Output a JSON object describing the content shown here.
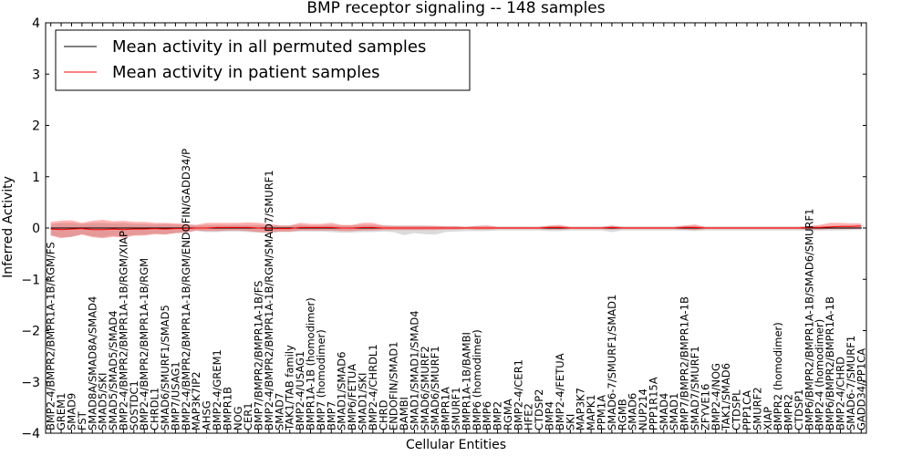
{
  "chart_data": {
    "type": "line",
    "title": "BMP receptor signaling -- 148 samples",
    "xlabel": "Cellular Entities",
    "ylabel": "Inferred Activity",
    "ylim": [
      -4,
      4
    ],
    "yticks": [
      4,
      3,
      2,
      1,
      0,
      -1,
      -2,
      -3,
      -4
    ],
    "ytick_labels": [
      "4",
      "3",
      "2",
      "1",
      "0",
      "−1",
      "−2",
      "−3",
      "−4"
    ],
    "legend_position": "top-left",
    "legend": [
      {
        "label": "Mean activity in all permuted samples",
        "color": "#000000"
      },
      {
        "label": "Mean activity in patient samples",
        "color": "#ff0000"
      }
    ],
    "categories": [
      "BMP2-4/BMPR2/BMPR1A-1B/RGM/FS",
      "GREM1",
      "SMAD9",
      "FST",
      "SMAD8A/SMAD8A/SMAD4",
      "SMAD5/SKI",
      "SMAD5/SMAD5/SMAD4",
      "BMP2-4/BMPR2/BMPR1A-1B/RGM/XIAP",
      "SOSTDC1",
      "BMP2-4/BMPR2/BMPR1A-1B/RGM",
      "CHRDL1",
      "SMAD6/SMURF1/SMAD5",
      "BMP7/USAG1",
      "BMP2-4/BMPR2/BMPR1A-1B/RGM/ENDOFIN/GADD34/P",
      "MAP3K7IP2",
      "AHSG",
      "BMP2-4/GREM1",
      "BMPR1B",
      "NOG",
      "CER1",
      "BMP7/BMPR2/BMPR1A-1B/FS",
      "BMP2-4/BMPR2/BMPR1A-1B/RGM/SMAD7/SMURF1",
      "SMAD7",
      "TAK1/TAB family",
      "BMP2-4/USAG1",
      "BMPR1A-1B (homodimer)",
      "BMP7 (homodimer)",
      "BMP7",
      "SMAD1/SMAD6",
      "BMP6/FETUA",
      "SMAD1/SKI",
      "BMP2-4/CHRDL1",
      "CHRD",
      "ENDOFIN/SMAD1",
      "BAMBI",
      "SMAD1/SMAD1/SMAD4",
      "SMAD6/SMURF2",
      "SMAD6/SMURF1",
      "BMPR1A",
      "SMURF1",
      "BMPR1A-1B/BAMBI",
      "BMP6 (homodimer)",
      "BMP6",
      "BMP2",
      "RGMA",
      "BMP2-4/CER1",
      "HFE2",
      "CTDSP2",
      "BMP4",
      "BMP2-4/FETUA",
      "SKI",
      "MAP3K7",
      "MAPK1",
      "PPM1A",
      "SMAD6-7/SMURF1/SMAD1",
      "RGMB",
      "SMAD6",
      "NUP214",
      "PPP1R15A",
      "SMAD4",
      "SMAD1",
      "BMP7/BMPR2/BMPR1A-1B",
      "SMAD7/SMURF1",
      "ZFYVE16",
      "BMP2-4/NOG",
      "TAK1/SMAD6",
      "CTDSPL",
      "PPP1CA",
      "SMURF2",
      "XIAP",
      "BMPR2 (homodimer)",
      "BMPR2",
      "CTDSP1",
      "BMP6/BMPR2/BMPR1A-1B/SMAD6/SMURF1",
      "BMP2-4 (homodimer)",
      "BMP6/BMPR2/BMPR1A-1B",
      "BMP2-4/CHRD",
      "SMAD6-7/SMURF1",
      "GADD34/PP1CA"
    ],
    "series": [
      {
        "name": "Mean activity in all permuted samples",
        "values": [
          0,
          0,
          0,
          0,
          0,
          0,
          0,
          0,
          0,
          0,
          0,
          0,
          0,
          0,
          0,
          0,
          0,
          0,
          0,
          0,
          0,
          0,
          0,
          0,
          0,
          0,
          0,
          0,
          0,
          0,
          0,
          0,
          0,
          0,
          0,
          0,
          0,
          0,
          0,
          0,
          0,
          0,
          0,
          0,
          0,
          0,
          0,
          0,
          0,
          0,
          0,
          0,
          0,
          0,
          0,
          0,
          0,
          0,
          0,
          0,
          0,
          0,
          0,
          0,
          0,
          0,
          0,
          0,
          0,
          0,
          0,
          0,
          0,
          0,
          0,
          0,
          0,
          0,
          0
        ]
      },
      {
        "name": "Mean activity in patient samples",
        "values": [
          -0.02,
          -0.03,
          -0.02,
          -0.01,
          -0.03,
          -0.03,
          -0.02,
          -0.03,
          -0.02,
          -0.02,
          -0.01,
          -0.02,
          -0.01,
          -0.01,
          0,
          0,
          0.01,
          0.01,
          0.01,
          0.01,
          0,
          -0.01,
          -0.01,
          -0.01,
          0.01,
          0.01,
          0.01,
          0.01,
          0,
          0,
          0.01,
          0.01,
          0,
          0,
          0,
          0,
          0,
          0,
          0,
          0,
          0,
          0,
          0,
          0,
          0,
          0,
          0,
          0,
          0.01,
          0.01,
          0,
          0,
          0,
          0,
          0.01,
          0,
          0,
          0,
          0,
          0,
          0,
          0.01,
          0.01,
          0,
          0,
          0,
          0,
          0,
          0,
          0,
          0,
          0,
          0,
          0.01,
          0.01,
          0.02,
          0.03,
          0.03,
          0.04
        ]
      },
      {
        "name": "Patient activity spread (upper)",
        "values": [
          0.12,
          0.14,
          0.15,
          0.1,
          0.14,
          0.16,
          0.13,
          0.14,
          0.12,
          0.12,
          0.1,
          0.1,
          0.09,
          0.08,
          0.06,
          0.1,
          0.1,
          0.1,
          0.1,
          0.11,
          0.1,
          0.08,
          0.05,
          0.05,
          0.1,
          0.08,
          0.08,
          0.1,
          0.06,
          0.06,
          0.1,
          0.1,
          0.05,
          0.04,
          0.04,
          0.04,
          0.04,
          0.04,
          0.03,
          0.03,
          0.02,
          0.04,
          0.05,
          0.02,
          0.02,
          0.02,
          0.02,
          0.02,
          0.05,
          0.06,
          0.02,
          0.02,
          0.02,
          0.02,
          0.05,
          0.02,
          0.02,
          0.02,
          0.02,
          0.02,
          0.02,
          0.05,
          0.07,
          0.02,
          0.02,
          0.02,
          0.02,
          0.02,
          0.02,
          0.02,
          0.02,
          0.02,
          0.02,
          0.04,
          0.06,
          0.1,
          0.1,
          0.09,
          0.09
        ]
      },
      {
        "name": "Patient activity spread (lower)",
        "values": [
          -0.15,
          -0.2,
          -0.17,
          -0.13,
          -0.18,
          -0.2,
          -0.17,
          -0.19,
          -0.15,
          -0.15,
          -0.12,
          -0.13,
          -0.1,
          -0.09,
          -0.05,
          -0.06,
          -0.06,
          -0.05,
          -0.05,
          -0.06,
          -0.08,
          -0.09,
          -0.07,
          -0.07,
          -0.05,
          -0.05,
          -0.05,
          -0.05,
          -0.06,
          -0.06,
          -0.05,
          -0.05,
          -0.04,
          -0.04,
          -0.04,
          -0.04,
          -0.04,
          -0.04,
          -0.03,
          -0.03,
          -0.02,
          -0.03,
          -0.03,
          -0.02,
          -0.02,
          -0.02,
          -0.02,
          -0.02,
          -0.03,
          -0.03,
          -0.02,
          -0.02,
          -0.02,
          -0.02,
          -0.03,
          -0.02,
          -0.02,
          -0.02,
          -0.02,
          -0.02,
          -0.02,
          -0.03,
          -0.04,
          -0.02,
          -0.02,
          -0.02,
          -0.02,
          -0.02,
          -0.02,
          -0.02,
          -0.02,
          -0.02,
          -0.02,
          -0.03,
          -0.03,
          -0.02,
          -0.02,
          -0.02,
          -0.01
        ]
      },
      {
        "name": "Permuted activity spread (upper)",
        "values": [
          0.08,
          0.1,
          0.1,
          0.08,
          0.1,
          0.1,
          0.09,
          0.1,
          0.08,
          0.08,
          0.07,
          0.08,
          0.07,
          0.06,
          0.05,
          0.06,
          0.06,
          0.06,
          0.06,
          0.06,
          0.06,
          0.05,
          0.05,
          0.05,
          0.06,
          0.05,
          0.05,
          0.06,
          0.05,
          0.05,
          0.06,
          0.06,
          0.05,
          0.05,
          0.05,
          0.05,
          0.05,
          0.04,
          0.04,
          0.04,
          0.03,
          0.04,
          0.04,
          0.03,
          0.03,
          0.03,
          0.03,
          0.03,
          0.04,
          0.04,
          0.03,
          0.03,
          0.03,
          0.03,
          0.04,
          0.03,
          0.03,
          0.03,
          0.03,
          0.03,
          0.03,
          0.04,
          0.04,
          0.03,
          0.03,
          0.03,
          0.03,
          0.03,
          0.03,
          0.03,
          0.03,
          0.03,
          0.03,
          0.03,
          0.03,
          0.04,
          0.04,
          0.04,
          0.04
        ]
      },
      {
        "name": "Permuted activity spread (lower)",
        "values": [
          -0.14,
          -0.18,
          -0.17,
          -0.12,
          -0.16,
          -0.18,
          -0.15,
          -0.17,
          -0.14,
          -0.13,
          -0.11,
          -0.12,
          -0.1,
          -0.08,
          -0.06,
          -0.08,
          -0.08,
          -0.07,
          -0.07,
          -0.08,
          -0.09,
          -0.1,
          -0.08,
          -0.08,
          -0.07,
          -0.07,
          -0.07,
          -0.08,
          -0.09,
          -0.09,
          -0.08,
          -0.08,
          -0.07,
          -0.08,
          -0.14,
          -0.1,
          -0.12,
          -0.13,
          -0.08,
          -0.07,
          -0.06,
          -0.06,
          -0.06,
          -0.05,
          -0.05,
          -0.05,
          -0.05,
          -0.05,
          -0.06,
          -0.06,
          -0.05,
          -0.05,
          -0.05,
          -0.05,
          -0.08,
          -0.05,
          -0.05,
          -0.05,
          -0.05,
          -0.05,
          -0.05,
          -0.05,
          -0.06,
          -0.05,
          -0.05,
          -0.05,
          -0.05,
          -0.05,
          -0.05,
          -0.05,
          -0.05,
          -0.05,
          -0.05,
          -0.05,
          -0.05,
          -0.05,
          -0.05,
          -0.04,
          -0.04
        ]
      }
    ]
  }
}
